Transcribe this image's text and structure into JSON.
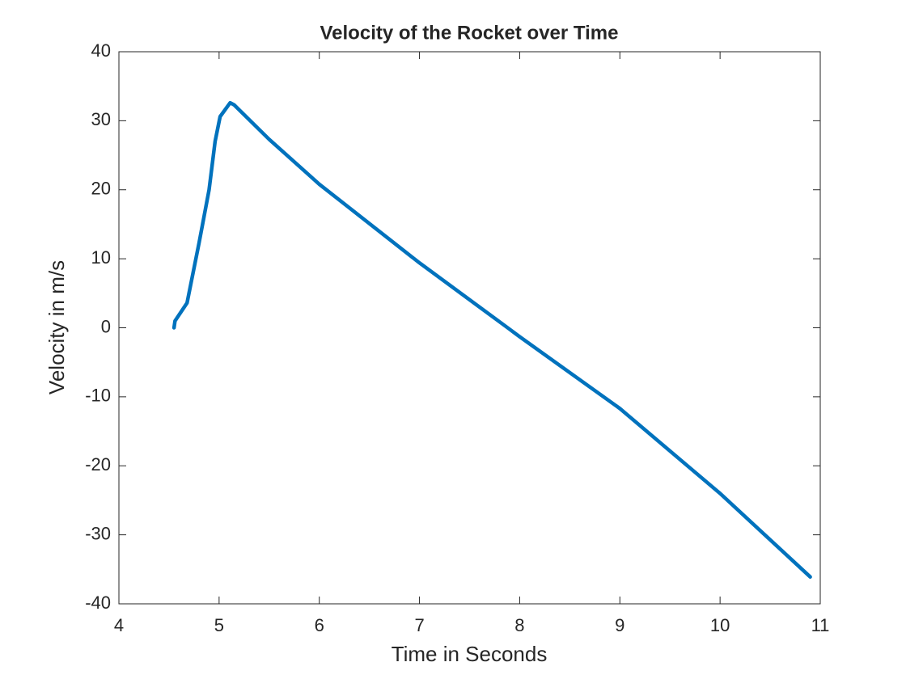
{
  "chart_data": {
    "type": "line",
    "title": "Velocity of the Rocket over Time",
    "x_label": "Time in Seconds",
    "y_label": "Velocity in m/s",
    "x": [
      4.55,
      4.56,
      4.68,
      4.8,
      4.9,
      4.96,
      5.01,
      5.11,
      5.15,
      5.5,
      6,
      7,
      7.88,
      8,
      9,
      10,
      10.9
    ],
    "values": [
      0,
      1,
      3.6,
      12.3,
      20,
      27,
      30.6,
      32.6,
      32.3,
      27.3,
      20.8,
      9.4,
      0,
      -1.3,
      -11.7,
      -24,
      -36.1
    ],
    "color": "#0072bd",
    "xlim": [
      4,
      11
    ],
    "xticks": [
      4,
      5,
      6,
      7,
      8,
      9,
      10,
      11
    ],
    "ylim": [
      -40,
      40
    ],
    "yticks": [
      -40,
      -30,
      -20,
      -10,
      0,
      10,
      20,
      30,
      40
    ]
  }
}
